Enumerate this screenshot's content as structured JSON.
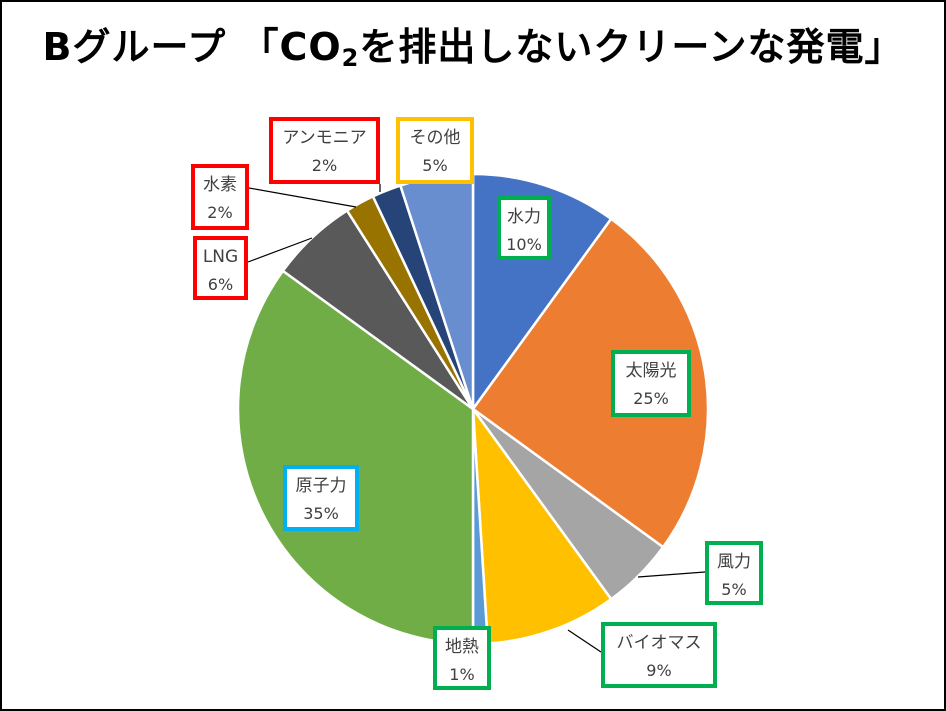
{
  "title": {
    "prefix": "Bグループ 「CO",
    "sub": "2",
    "suffix": "を排出しないクリーンな発電」"
  },
  "chart_data": {
    "type": "pie",
    "title": "Bグループ 「CO2を排出しないクリーンな発電」",
    "start_angle_deg": 0,
    "direction": "clockwise",
    "slices": [
      {
        "label": "水力",
        "value": 10,
        "pct_label": "10%",
        "color": "#4472c4",
        "box_color": "#00b050"
      },
      {
        "label": "太陽光",
        "value": 25,
        "pct_label": "25%",
        "color": "#ed7d31",
        "box_color": "#00b050"
      },
      {
        "label": "風力",
        "value": 5,
        "pct_label": "5%",
        "color": "#a5a5a5",
        "box_color": "#00b050"
      },
      {
        "label": "バイオマス",
        "value": 9,
        "pct_label": "9%",
        "color": "#ffc000",
        "box_color": "#00b050"
      },
      {
        "label": "地熱",
        "value": 1,
        "pct_label": "1%",
        "color": "#5b9bd5",
        "box_color": "#00b050"
      },
      {
        "label": "原子力",
        "value": 35,
        "pct_label": "35%",
        "color": "#70ad47",
        "box_color": "#00b0f0"
      },
      {
        "label": "LNG",
        "value": 6,
        "pct_label": "6%",
        "color": "#595959",
        "box_color": "#ff0000"
      },
      {
        "label": "水素",
        "value": 2,
        "pct_label": "2%",
        "color": "#997300",
        "box_color": "#ff0000"
      },
      {
        "label": "アンモニア",
        "value": 2,
        "pct_label": "2%",
        "color": "#264478",
        "box_color": "#ff0000"
      },
      {
        "label": "その他",
        "value": 5,
        "pct_label": "5%",
        "color": "#698ed0",
        "box_color": "#ffc000"
      }
    ]
  }
}
